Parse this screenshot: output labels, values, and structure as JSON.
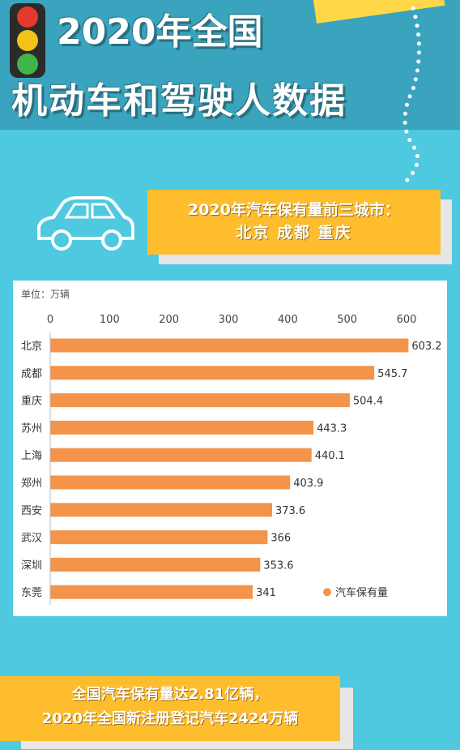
{
  "header": {
    "title_line1": "2020年全国",
    "title_line2": "机动车和驾驶人数据"
  },
  "icons": [
    "traffic-light-icon",
    "car-icon"
  ],
  "banner_top": {
    "line1": "2020年汽车保有量前三城市：",
    "line2": "北京 成都 重庆"
  },
  "chart_data": {
    "type": "bar",
    "orientation": "horizontal",
    "unit_label": "单位：万辆",
    "categories": [
      "北京",
      "成都",
      "重庆",
      "苏州",
      "上海",
      "郑州",
      "西安",
      "武汉",
      "深圳",
      "东莞"
    ],
    "series": [
      {
        "name": "汽车保有量",
        "values": [
          603.2,
          545.7,
          504.4,
          443.3,
          440.1,
          403.9,
          373.6,
          366,
          353.6,
          341
        ],
        "value_labels": [
          "603.2",
          "545.7",
          "504.4",
          "443.3",
          "440.1",
          "403.9",
          "373.6",
          "366",
          "353.6",
          "341"
        ],
        "color": "#f3944a"
      }
    ],
    "xlim": [
      0,
      600
    ],
    "xticks": [
      "0",
      "100",
      "200",
      "300",
      "400",
      "500",
      "600"
    ],
    "grid": false,
    "legend": "bottom-right"
  },
  "banner_bottom": {
    "line1": "全国汽车保有量达2.81亿辆，",
    "line2": "2020年全国新注册登记汽车2424万辆"
  },
  "colors": {
    "background": "#4ec9e0",
    "header_band": "#3aa3bd",
    "banner": "#fdbd2d",
    "bar": "#f3944a"
  }
}
